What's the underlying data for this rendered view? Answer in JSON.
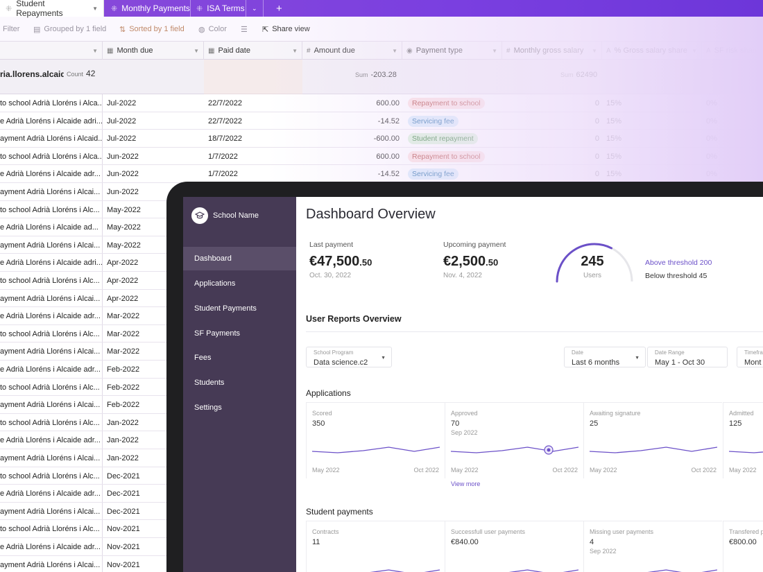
{
  "tabs": [
    {
      "label": "Student Repayments"
    },
    {
      "label": "Monthly Payments"
    },
    {
      "label": "ISA Terms"
    }
  ],
  "toolbar": {
    "filter": "Filter",
    "grouped": "Grouped by 1 field",
    "sorted": "Sorted by 1 field",
    "color": "Color",
    "share": "Share view"
  },
  "columns": [
    "Month due",
    "Paid date",
    "Amount due",
    "Payment type",
    "Monthly gross salary",
    "% Gross salary share",
    "SF risk share"
  ],
  "group": {
    "name": "ria.llorens.alcaide",
    "count_label": "Count",
    "count": "42",
    "sum_label": "Sum",
    "sum_amount": "-203.28",
    "sum_salary": "62490"
  },
  "rows": [
    {
      "name": "to school Adrià Lloréns i Alca...",
      "month": "Jul-2022",
      "paid": "22/7/2022",
      "amount": "600.00",
      "type": "Repayment to school",
      "salary": "0",
      "share": "15%",
      "risk": "0%"
    },
    {
      "name": "e Adrià Lloréns i Alcaide adri...",
      "month": "Jul-2022",
      "paid": "22/7/2022",
      "amount": "-14.52",
      "type": "Servicing fee",
      "salary": "0",
      "share": "15%",
      "risk": "0%"
    },
    {
      "name": "ayment Adrià Lloréns i Alcaid...",
      "month": "Jul-2022",
      "paid": "18/7/2022",
      "amount": "-600.00",
      "type": "Student repayment",
      "salary": "0",
      "share": "15%",
      "risk": "0%"
    },
    {
      "name": "to school Adrià Lloréns i Alca...",
      "month": "Jun-2022",
      "paid": "1/7/2022",
      "amount": "600.00",
      "type": "Repayment to school",
      "salary": "0",
      "share": "15%",
      "risk": "0%"
    },
    {
      "name": "e Adrià Lloréns i Alcaide adr...",
      "month": "Jun-2022",
      "paid": "1/7/2022",
      "amount": "-14.52",
      "type": "Servicing fee",
      "salary": "0",
      "share": "15%",
      "risk": "0%"
    },
    {
      "name": "ayment Adrià Lloréns i Alcai...",
      "month": "Jun-2022"
    },
    {
      "name": "to school Adrià Lloréns i Alc...",
      "month": "May-2022"
    },
    {
      "name": "e Adrià Lloréns i Alcaide ad...",
      "month": "May-2022"
    },
    {
      "name": "ayment Adrià Lloréns i Alcai...",
      "month": "May-2022"
    },
    {
      "name": "e Adrià Lloréns i Alcaide adri...",
      "month": "Apr-2022"
    },
    {
      "name": "to school Adrià Lloréns i Alc...",
      "month": "Apr-2022"
    },
    {
      "name": "ayment Adrià Lloréns i Alcai...",
      "month": "Apr-2022"
    },
    {
      "name": "e Adrià Lloréns i Alcaide adr...",
      "month": "Mar-2022"
    },
    {
      "name": "to school Adrià Lloréns i Alc...",
      "month": "Mar-2022"
    },
    {
      "name": "ayment Adrià Lloréns i Alcai...",
      "month": "Mar-2022"
    },
    {
      "name": "e Adrià Lloréns i Alcaide adr...",
      "month": "Feb-2022"
    },
    {
      "name": "to school Adrià Lloréns i Alc...",
      "month": "Feb-2022"
    },
    {
      "name": "ayment Adrià Lloréns i Alcai...",
      "month": "Feb-2022"
    },
    {
      "name": "to school Adrià Lloréns i Alc...",
      "month": "Jan-2022"
    },
    {
      "name": "e Adrià Lloréns i Alcaide adr...",
      "month": "Jan-2022"
    },
    {
      "name": "ayment Adrià Lloréns i Alcai...",
      "month": "Jan-2022"
    },
    {
      "name": "to school Adrià Lloréns i Alc...",
      "month": "Dec-2021"
    },
    {
      "name": "e Adrià Lloréns i Alcaide adr...",
      "month": "Dec-2021"
    },
    {
      "name": "ayment Adrià Lloréns i Alcai...",
      "month": "Dec-2021"
    },
    {
      "name": "to school Adrià Lloréns i Alc...",
      "month": "Nov-2021"
    },
    {
      "name": "e Adrià Lloréns i Alcaide adr...",
      "month": "Nov-2021"
    },
    {
      "name": "ayment Adrià Lloréns i Alcai...",
      "month": "Nov-2021"
    }
  ],
  "dashboard": {
    "school_name": "School Name",
    "nav": [
      "Dashboard",
      "Applications",
      "Student Payments",
      "SF Payments",
      "Fees",
      "Students",
      "Settings"
    ],
    "title": "Dashboard Overview",
    "last_payment": {
      "label": "Last payment",
      "value": "€47,500",
      "cents": ".50",
      "date": "Oct. 30, 2022"
    },
    "upcoming_payment": {
      "label": "Upcoming payment",
      "value": "€2,500",
      "cents": ".50",
      "date": "Nov. 4, 2022"
    },
    "users": {
      "count": "245",
      "label": "Users",
      "above": "Above threshold 200",
      "below": "Below threshold 45",
      "gauge_fraction": 0.65
    },
    "reports_title": "User Reports Overview",
    "filters": [
      {
        "label": "School Program",
        "value": "Data science.c2"
      },
      {
        "label": "Date",
        "value": "Last 6 months"
      },
      {
        "label": "Date Range",
        "value": "May 1 - Oct 30"
      },
      {
        "label": "Timefra",
        "value": "Mont"
      }
    ],
    "applications_title": "Applications",
    "applications": [
      {
        "label": "Scored",
        "value": "350",
        "sub": "",
        "x0": "May 2022",
        "x1": "Oct 2022"
      },
      {
        "label": "Approved",
        "value": "70",
        "sub": "Sep 2022",
        "x0": "May 2022",
        "x1": "Oct 2022",
        "more": "View more"
      },
      {
        "label": "Awaiting signature",
        "value": "25",
        "sub": "",
        "x0": "May 2022",
        "x1": "Oct 2022"
      },
      {
        "label": "Admitted",
        "value": "125",
        "sub": "",
        "x0": "May 2022",
        "x1": ""
      }
    ],
    "payments_title": "Student payments",
    "payments": [
      {
        "label": "Contracts",
        "value": "11",
        "sub": ""
      },
      {
        "label": "Successfull user payments",
        "value": "€840.00",
        "sub": ""
      },
      {
        "label": "Missing user payments",
        "value": "4",
        "sub": "Sep 2022"
      },
      {
        "label": "Transfered p",
        "value": "€800.00",
        "sub": ""
      }
    ],
    "colors": {
      "sidebar": "#463a55",
      "accent": "#6b50c8",
      "tabbar": "#7a3fe0"
    }
  }
}
